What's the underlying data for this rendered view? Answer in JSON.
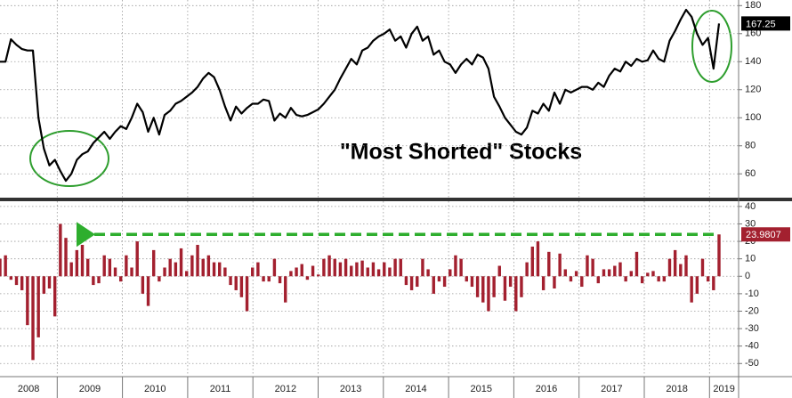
{
  "chart_data": [
    {
      "type": "line",
      "annotation": "\"Most Shorted\" Stocks",
      "color": "#000000",
      "values": [
        140,
        140,
        156,
        152,
        149,
        148,
        148,
        100,
        78,
        66,
        70,
        62,
        55,
        60,
        70,
        74,
        76,
        82,
        86,
        90,
        85,
        90,
        94,
        92,
        100,
        110,
        104,
        90,
        100,
        88,
        102,
        105,
        110,
        112,
        115,
        118,
        122,
        128,
        132,
        129,
        120,
        108,
        98,
        108,
        103,
        107,
        110,
        110,
        113,
        112,
        98,
        103,
        100,
        107,
        102,
        101,
        102,
        104,
        106,
        110,
        115,
        120,
        128,
        135,
        142,
        138,
        148,
        150,
        155,
        158,
        160,
        163,
        155,
        158,
        150,
        160,
        165,
        155,
        158,
        145,
        148,
        140,
        138,
        132,
        138,
        142,
        138,
        145,
        143,
        135,
        115,
        108,
        100,
        95,
        90,
        88,
        93,
        105,
        103,
        110,
        105,
        118,
        110,
        120,
        118,
        120,
        122,
        122,
        120,
        125,
        122,
        130,
        135,
        133,
        140,
        137,
        142,
        140,
        141,
        148,
        142,
        140,
        155,
        162,
        170,
        177,
        172,
        160,
        152,
        157,
        135,
        167.25
      ],
      "ylim": [
        43,
        184
      ],
      "yticks": [
        60,
        80,
        100,
        120,
        140,
        160,
        180
      ],
      "grid": true
    },
    {
      "type": "bar",
      "color": "#a3202f",
      "values": [
        10,
        12,
        -2,
        -5,
        -8,
        -28,
        -48,
        -35,
        -10,
        -7,
        -23,
        30,
        22,
        8,
        15,
        18,
        10,
        -5,
        -4,
        12,
        10,
        5,
        -3,
        12,
        5,
        20,
        -10,
        -17,
        15,
        -3,
        5,
        10,
        8,
        16,
        3,
        12,
        18,
        10,
        12,
        8,
        8,
        5,
        -5,
        -8,
        -12,
        -20,
        5,
        8,
        -3,
        -3,
        10,
        -4,
        -15,
        3,
        5,
        7,
        -2,
        6,
        1,
        10,
        12,
        10,
        8,
        10,
        6,
        8,
        9,
        5,
        8,
        4,
        8,
        5,
        10,
        10,
        -5,
        -8,
        -6,
        10,
        4,
        -10,
        -3,
        -6,
        4,
        12,
        10,
        -3,
        -6,
        -12,
        -15,
        -20,
        -12,
        6,
        -14,
        -6,
        -20,
        -12,
        8,
        17,
        20,
        -8,
        14,
        -7,
        13,
        4,
        -3,
        3,
        -6,
        12,
        10,
        -4,
        4,
        4,
        6,
        8,
        -3,
        3,
        14,
        -4,
        2,
        3,
        -3,
        -3,
        10,
        15,
        7,
        12,
        -15,
        -10,
        10,
        -3,
        -8,
        23.9807
      ],
      "ylim": [
        -57,
        43
      ],
      "yticks": [
        40,
        30,
        20,
        10,
        0,
        -10,
        -20,
        -30,
        -40,
        -50
      ],
      "grid": true,
      "xbands": [
        "2008",
        "2009",
        "2010",
        "2011",
        "2012",
        "2013",
        "2014",
        "2015",
        "2016",
        "2017",
        "2018",
        "2019"
      ]
    }
  ]
}
